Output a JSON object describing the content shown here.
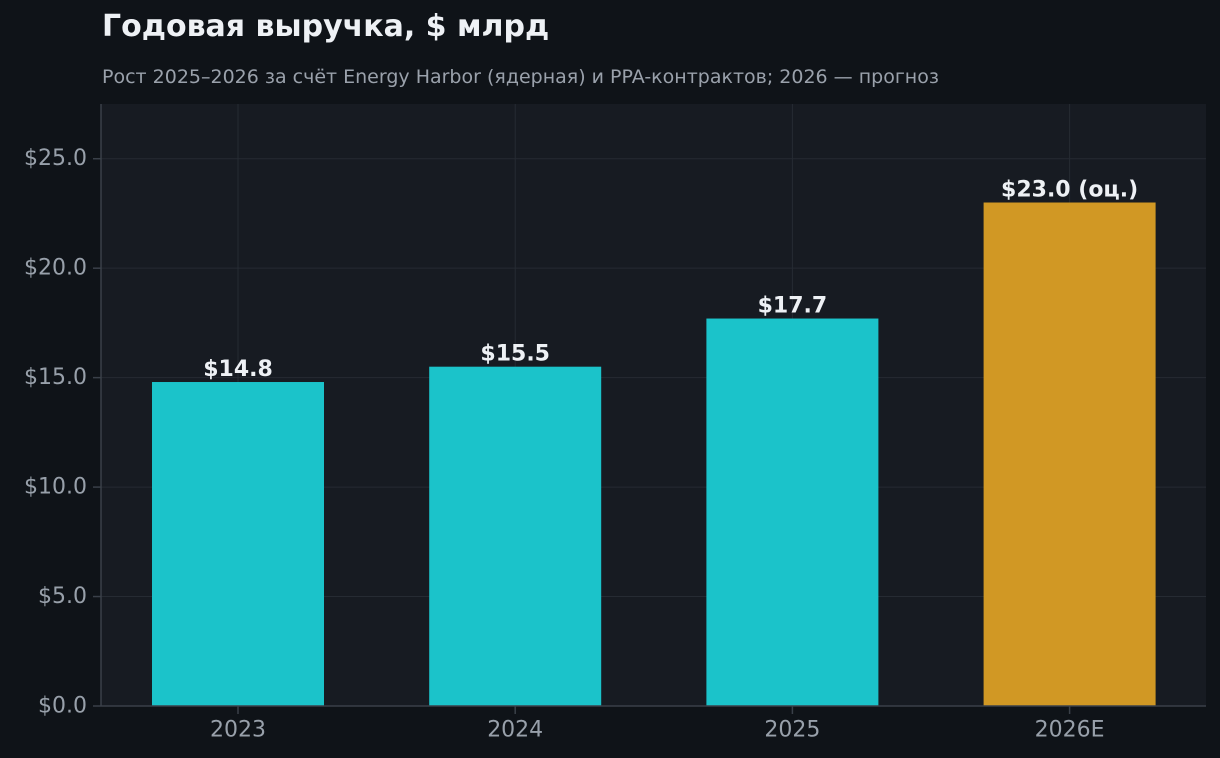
{
  "chart_data": {
    "type": "bar",
    "title": "Годовая выручка, $ млрд",
    "subtitle": "Рост 2025–2026 за счёт Energy Harbor (ядерная) и PPA-контрактов; 2026 — прогноз",
    "xlabel": "",
    "ylabel": "",
    "categories": [
      "2023",
      "2024",
      "2025",
      "2026E"
    ],
    "values": [
      14.8,
      15.5,
      17.7,
      23.0
    ],
    "value_labels": [
      "$14.8",
      "$15.5",
      "$17.7",
      "$23.0 (оц.)"
    ],
    "estimate_flags": [
      false,
      false,
      false,
      true
    ],
    "ylim": [
      0,
      27.5
    ],
    "yticks": [
      0,
      5,
      10,
      15,
      20,
      25
    ],
    "ytick_labels": [
      "$0.0",
      "$5.0",
      "$10.0",
      "$15.0",
      "$20.0",
      "$25.0"
    ],
    "grid": true,
    "legend": "none",
    "colors": {
      "actual": "#1bc3ca",
      "estimate": "#d19824",
      "plot_background": "#171b22",
      "page_background": "#0f1318",
      "grid": "#262b33",
      "axis": "#3a4049"
    }
  }
}
